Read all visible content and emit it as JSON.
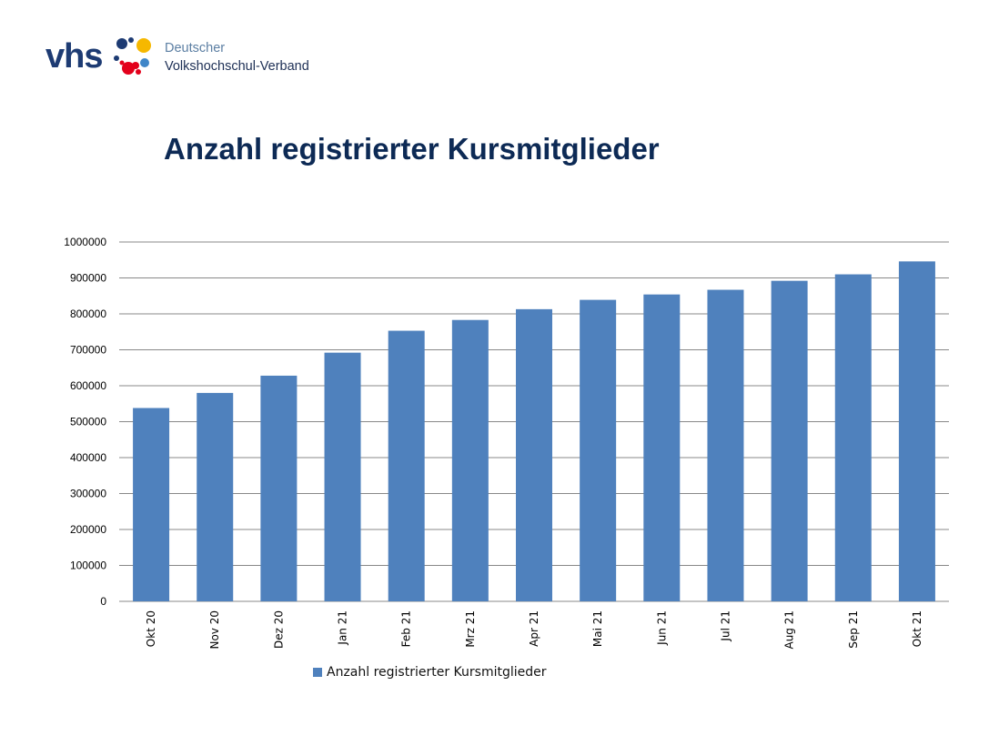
{
  "header": {
    "logo_text": "vhs",
    "org_line1": "Deutscher",
    "org_line2": "Volkshochschul-Verband"
  },
  "colors": {
    "brand_navy": "#1d3b73",
    "bar": "#4f81bd",
    "grid": "#888888"
  },
  "chart_data": {
    "type": "bar",
    "title": "Anzahl registrierter Kursmitglieder",
    "categories": [
      "Okt 20",
      "Nov 20",
      "Dez 20",
      "Jan 21",
      "Feb 21",
      "Mrz 21",
      "Apr 21",
      "Mai 21",
      "Jun 21",
      "Jul 21",
      "Aug 21",
      "Sep 21",
      "Okt 21"
    ],
    "series": [
      {
        "name": "Anzahl registrierter Kursmitglieder",
        "values": [
          538000,
          580000,
          628000,
          692000,
          753000,
          783000,
          813000,
          839000,
          854000,
          867000,
          892000,
          910000,
          946000
        ]
      }
    ],
    "ylim": [
      0,
      1000000
    ],
    "yticks": [
      "0",
      "100000",
      "200000",
      "300000",
      "400000",
      "500000",
      "600000",
      "700000",
      "800000",
      "900000",
      "1000000"
    ],
    "xlabel": "",
    "ylabel": "",
    "grid": true,
    "legend_position": "bottom"
  }
}
